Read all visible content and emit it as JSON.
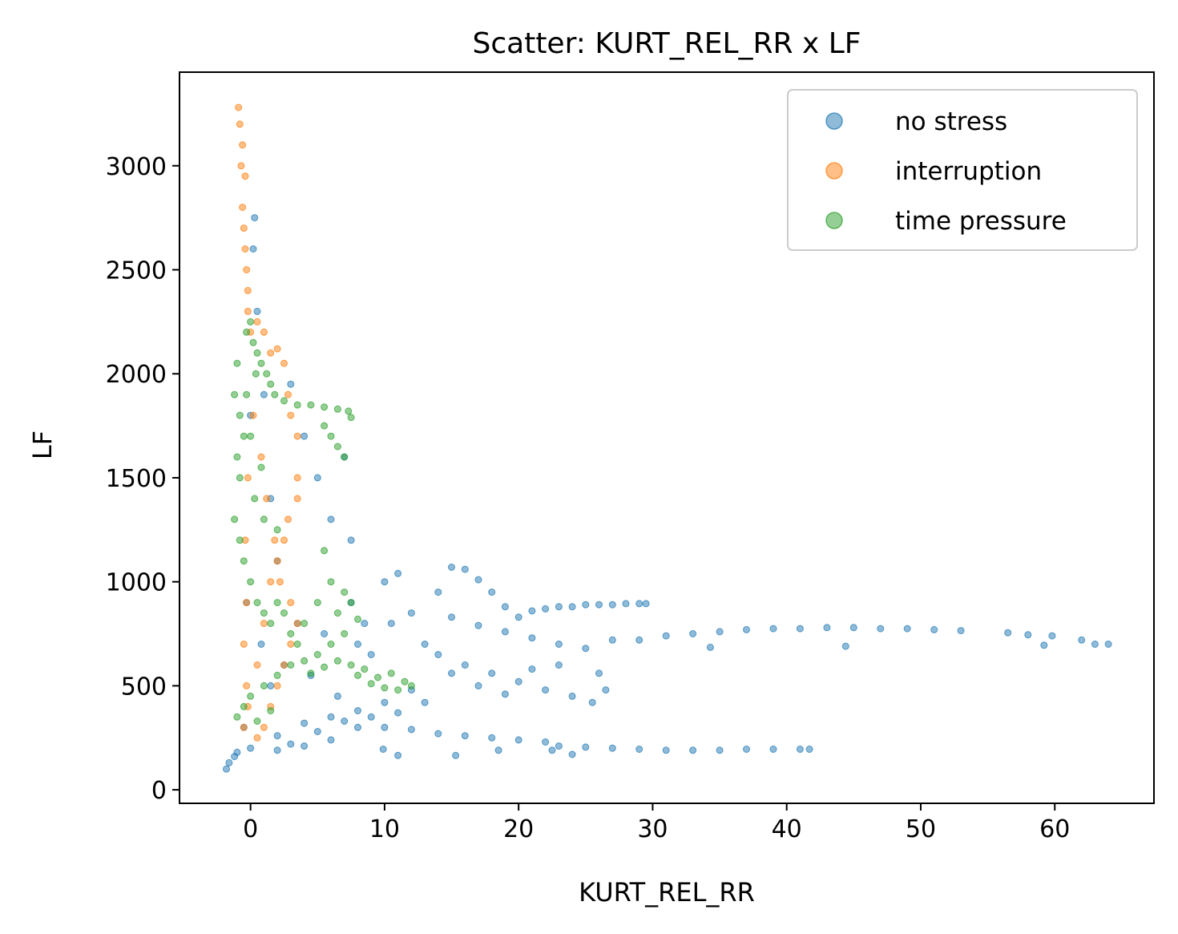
{
  "chart_data": {
    "type": "scatter",
    "title": "Scatter: KURT_REL_RR x LF",
    "xlabel": "KURT_REL_RR",
    "ylabel": "LF",
    "xlim": [
      -5.3,
      67.4
    ],
    "ylim": [
      -65,
      3450
    ],
    "xticks": [
      0,
      10,
      20,
      30,
      40,
      50,
      60
    ],
    "yticks": [
      0,
      500,
      1000,
      1500,
      2000,
      2500,
      3000
    ],
    "grid": false,
    "legend_position": "top-right",
    "series": [
      {
        "name": "no stress",
        "color": "#1f77b4",
        "points": [
          [
            -1.8,
            100
          ],
          [
            -1.6,
            130
          ],
          [
            -1.2,
            160
          ],
          [
            -0.5,
            300
          ],
          [
            -0.3,
            900
          ],
          [
            0.0,
            1800
          ],
          [
            0.2,
            2600
          ],
          [
            0.3,
            2750
          ],
          [
            0.5,
            2300
          ],
          [
            1.0,
            1900
          ],
          [
            1.5,
            1400
          ],
          [
            2.0,
            1100
          ],
          [
            3.0,
            1950
          ],
          [
            4.0,
            1700
          ],
          [
            5.0,
            1500
          ],
          [
            6.0,
            1300
          ],
          [
            7.0,
            1600
          ],
          [
            7.5,
            1200
          ],
          [
            7.5,
            900
          ],
          [
            8.0,
            700
          ],
          [
            9.0,
            650
          ],
          [
            10.0,
            1000
          ],
          [
            10.5,
            800
          ],
          [
            11.0,
            1040
          ],
          [
            12.0,
            850
          ],
          [
            13.0,
            700
          ],
          [
            14.0,
            950
          ],
          [
            15.0,
            1070
          ],
          [
            16.0,
            1060
          ],
          [
            17.0,
            1010
          ],
          [
            18.0,
            950
          ],
          [
            19.0,
            880
          ],
          [
            20.0,
            830
          ],
          [
            21.0,
            860
          ],
          [
            22.0,
            870
          ],
          [
            23.0,
            880
          ],
          [
            24.0,
            880
          ],
          [
            25.0,
            890
          ],
          [
            26.0,
            890
          ],
          [
            27.0,
            890
          ],
          [
            28.0,
            895
          ],
          [
            29.0,
            895
          ],
          [
            29.5,
            895
          ],
          [
            15.0,
            830
          ],
          [
            17.0,
            790
          ],
          [
            19.0,
            760
          ],
          [
            21.0,
            730
          ],
          [
            23.0,
            700
          ],
          [
            25.0,
            680
          ],
          [
            27.0,
            720
          ],
          [
            29.0,
            720
          ],
          [
            31.0,
            740
          ],
          [
            33.0,
            750
          ],
          [
            35.0,
            760
          ],
          [
            37.0,
            770
          ],
          [
            39.0,
            775
          ],
          [
            41.0,
            775
          ],
          [
            43.0,
            780
          ],
          [
            45.0,
            780
          ],
          [
            47.0,
            775
          ],
          [
            49.0,
            775
          ],
          [
            51.0,
            770
          ],
          [
            53.0,
            765
          ],
          [
            56.5,
            755
          ],
          [
            58.0,
            745
          ],
          [
            59.8,
            740
          ],
          [
            62.0,
            720
          ],
          [
            63.0,
            700
          ],
          [
            64.0,
            700
          ],
          [
            34.3,
            685
          ],
          [
            44.4,
            690
          ],
          [
            59.2,
            695
          ],
          [
            14.0,
            650
          ],
          [
            16.0,
            600
          ],
          [
            18.0,
            560
          ],
          [
            20.0,
            520
          ],
          [
            22.0,
            480
          ],
          [
            24.0,
            450
          ],
          [
            25.5,
            420
          ],
          [
            26.5,
            480
          ],
          [
            15.0,
            560
          ],
          [
            17.0,
            500
          ],
          [
            19.0,
            460
          ],
          [
            12.0,
            480
          ],
          [
            10.0,
            420
          ],
          [
            8.0,
            380
          ],
          [
            6.0,
            350
          ],
          [
            4.0,
            320
          ],
          [
            2.0,
            260
          ],
          [
            3.0,
            220
          ],
          [
            5.0,
            280
          ],
          [
            8.0,
            300
          ],
          [
            10.0,
            300
          ],
          [
            12.0,
            290
          ],
          [
            14.0,
            270
          ],
          [
            16.0,
            260
          ],
          [
            18.0,
            250
          ],
          [
            20.0,
            240
          ],
          [
            22.0,
            230
          ],
          [
            23.0,
            210
          ],
          [
            25.0,
            205
          ],
          [
            27.0,
            200
          ],
          [
            29.0,
            195
          ],
          [
            31.0,
            190
          ],
          [
            33.0,
            190
          ],
          [
            35.0,
            190
          ],
          [
            37.0,
            195
          ],
          [
            39.0,
            195
          ],
          [
            41.0,
            195
          ],
          [
            41.7,
            195
          ],
          [
            9.9,
            195
          ],
          [
            11.0,
            165
          ],
          [
            15.3,
            165
          ],
          [
            18.5,
            190
          ],
          [
            22.5,
            190
          ],
          [
            24.0,
            170
          ],
          [
            0.0,
            200
          ],
          [
            -1.0,
            180
          ],
          [
            2.0,
            190
          ],
          [
            4.0,
            210
          ],
          [
            6.0,
            240
          ],
          [
            7.0,
            330
          ],
          [
            9.0,
            350
          ],
          [
            11.0,
            370
          ],
          [
            13.0,
            420
          ],
          [
            21.0,
            580
          ],
          [
            23.0,
            600
          ],
          [
            26.0,
            560
          ],
          [
            2.5,
            600
          ],
          [
            3.5,
            800
          ],
          [
            1.5,
            500
          ],
          [
            0.8,
            700
          ],
          [
            4.5,
            550
          ],
          [
            6.5,
            450
          ],
          [
            5.5,
            750
          ],
          [
            8.5,
            800
          ]
        ]
      },
      {
        "name": "interruption",
        "color": "#ff7f0e",
        "points": [
          [
            -0.9,
            3280
          ],
          [
            -0.8,
            3200
          ],
          [
            -0.6,
            3100
          ],
          [
            -0.7,
            3000
          ],
          [
            -0.4,
            2950
          ],
          [
            -0.6,
            2800
          ],
          [
            -0.5,
            2700
          ],
          [
            -0.4,
            2600
          ],
          [
            -0.3,
            2500
          ],
          [
            -0.2,
            2400
          ],
          [
            -0.2,
            2300
          ],
          [
            0.0,
            2200
          ],
          [
            0.5,
            2250
          ],
          [
            1.0,
            2200
          ],
          [
            1.5,
            2100
          ],
          [
            2.0,
            2120
          ],
          [
            2.5,
            2050
          ],
          [
            2.8,
            1900
          ],
          [
            3.0,
            1800
          ],
          [
            3.5,
            1700
          ],
          [
            3.5,
            1500
          ],
          [
            3.5,
            1400
          ],
          [
            2.8,
            1300
          ],
          [
            2.5,
            1200
          ],
          [
            2.0,
            1100
          ],
          [
            1.5,
            1000
          ],
          [
            3.0,
            900
          ],
          [
            3.5,
            800
          ],
          [
            3.0,
            700
          ],
          [
            2.5,
            600
          ],
          [
            2.0,
            500
          ],
          [
            1.5,
            400
          ],
          [
            1.0,
            300
          ],
          [
            0.5,
            250
          ],
          [
            -0.5,
            300
          ],
          [
            -0.3,
            500
          ],
          [
            -0.5,
            700
          ],
          [
            -0.3,
            900
          ],
          [
            -0.4,
            1200
          ],
          [
            -0.2,
            1500
          ],
          [
            0.2,
            1800
          ],
          [
            0.8,
            1600
          ],
          [
            1.2,
            1400
          ],
          [
            1.8,
            1200
          ],
          [
            2.2,
            1000
          ],
          [
            1.0,
            800
          ],
          [
            0.5,
            600
          ],
          [
            -0.2,
            400
          ]
        ]
      },
      {
        "name": "time pressure",
        "color": "#2ca02c",
        "points": [
          [
            -1.2,
            1900
          ],
          [
            -1.0,
            2050
          ],
          [
            -0.8,
            1800
          ],
          [
            -0.5,
            1700
          ],
          [
            -0.3,
            2200
          ],
          [
            0.0,
            2250
          ],
          [
            0.2,
            2150
          ],
          [
            0.5,
            2100
          ],
          [
            0.8,
            2050
          ],
          [
            1.2,
            2000
          ],
          [
            1.5,
            1950
          ],
          [
            1.8,
            1900
          ],
          [
            2.5,
            1870
          ],
          [
            3.5,
            1850
          ],
          [
            4.5,
            1850
          ],
          [
            5.5,
            1840
          ],
          [
            6.5,
            1830
          ],
          [
            7.3,
            1820
          ],
          [
            7.5,
            1790
          ],
          [
            6.0,
            1700
          ],
          [
            7.0,
            1600
          ],
          [
            6.5,
            1650
          ],
          [
            5.5,
            1750
          ],
          [
            -1.2,
            1300
          ],
          [
            -0.8,
            1200
          ],
          [
            -0.5,
            1100
          ],
          [
            0.0,
            1000
          ],
          [
            0.5,
            900
          ],
          [
            1.0,
            850
          ],
          [
            1.5,
            800
          ],
          [
            2.0,
            900
          ],
          [
            2.5,
            850
          ],
          [
            3.0,
            750
          ],
          [
            3.5,
            700
          ],
          [
            4.0,
            800
          ],
          [
            5.0,
            900
          ],
          [
            5.5,
            1150
          ],
          [
            6.0,
            1000
          ],
          [
            6.5,
            850
          ],
          [
            7.0,
            950
          ],
          [
            7.5,
            900
          ],
          [
            8.0,
            820
          ],
          [
            7.0,
            750
          ],
          [
            6.0,
            700
          ],
          [
            5.0,
            650
          ],
          [
            4.0,
            620
          ],
          [
            3.0,
            600
          ],
          [
            2.0,
            550
          ],
          [
            1.0,
            500
          ],
          [
            0.0,
            450
          ],
          [
            -0.5,
            400
          ],
          [
            -1.0,
            350
          ],
          [
            0.5,
            330
          ],
          [
            1.5,
            380
          ],
          [
            4.5,
            560
          ],
          [
            5.5,
            590
          ],
          [
            6.5,
            620
          ],
          [
            7.5,
            600
          ],
          [
            8.5,
            580
          ],
          [
            9.5,
            540
          ],
          [
            10.5,
            560
          ],
          [
            11.5,
            520
          ],
          [
            12.0,
            500
          ],
          [
            11.0,
            480
          ],
          [
            10.0,
            490
          ],
          [
            9.0,
            510
          ],
          [
            8.0,
            550
          ],
          [
            -1.0,
            1600
          ],
          [
            -0.8,
            1500
          ],
          [
            0.3,
            1400
          ],
          [
            1.0,
            1300
          ],
          [
            2.0,
            1250
          ],
          [
            0.0,
            1700
          ],
          [
            0.8,
            1550
          ],
          [
            -0.3,
            1900
          ],
          [
            0.4,
            2000
          ]
        ]
      }
    ]
  }
}
